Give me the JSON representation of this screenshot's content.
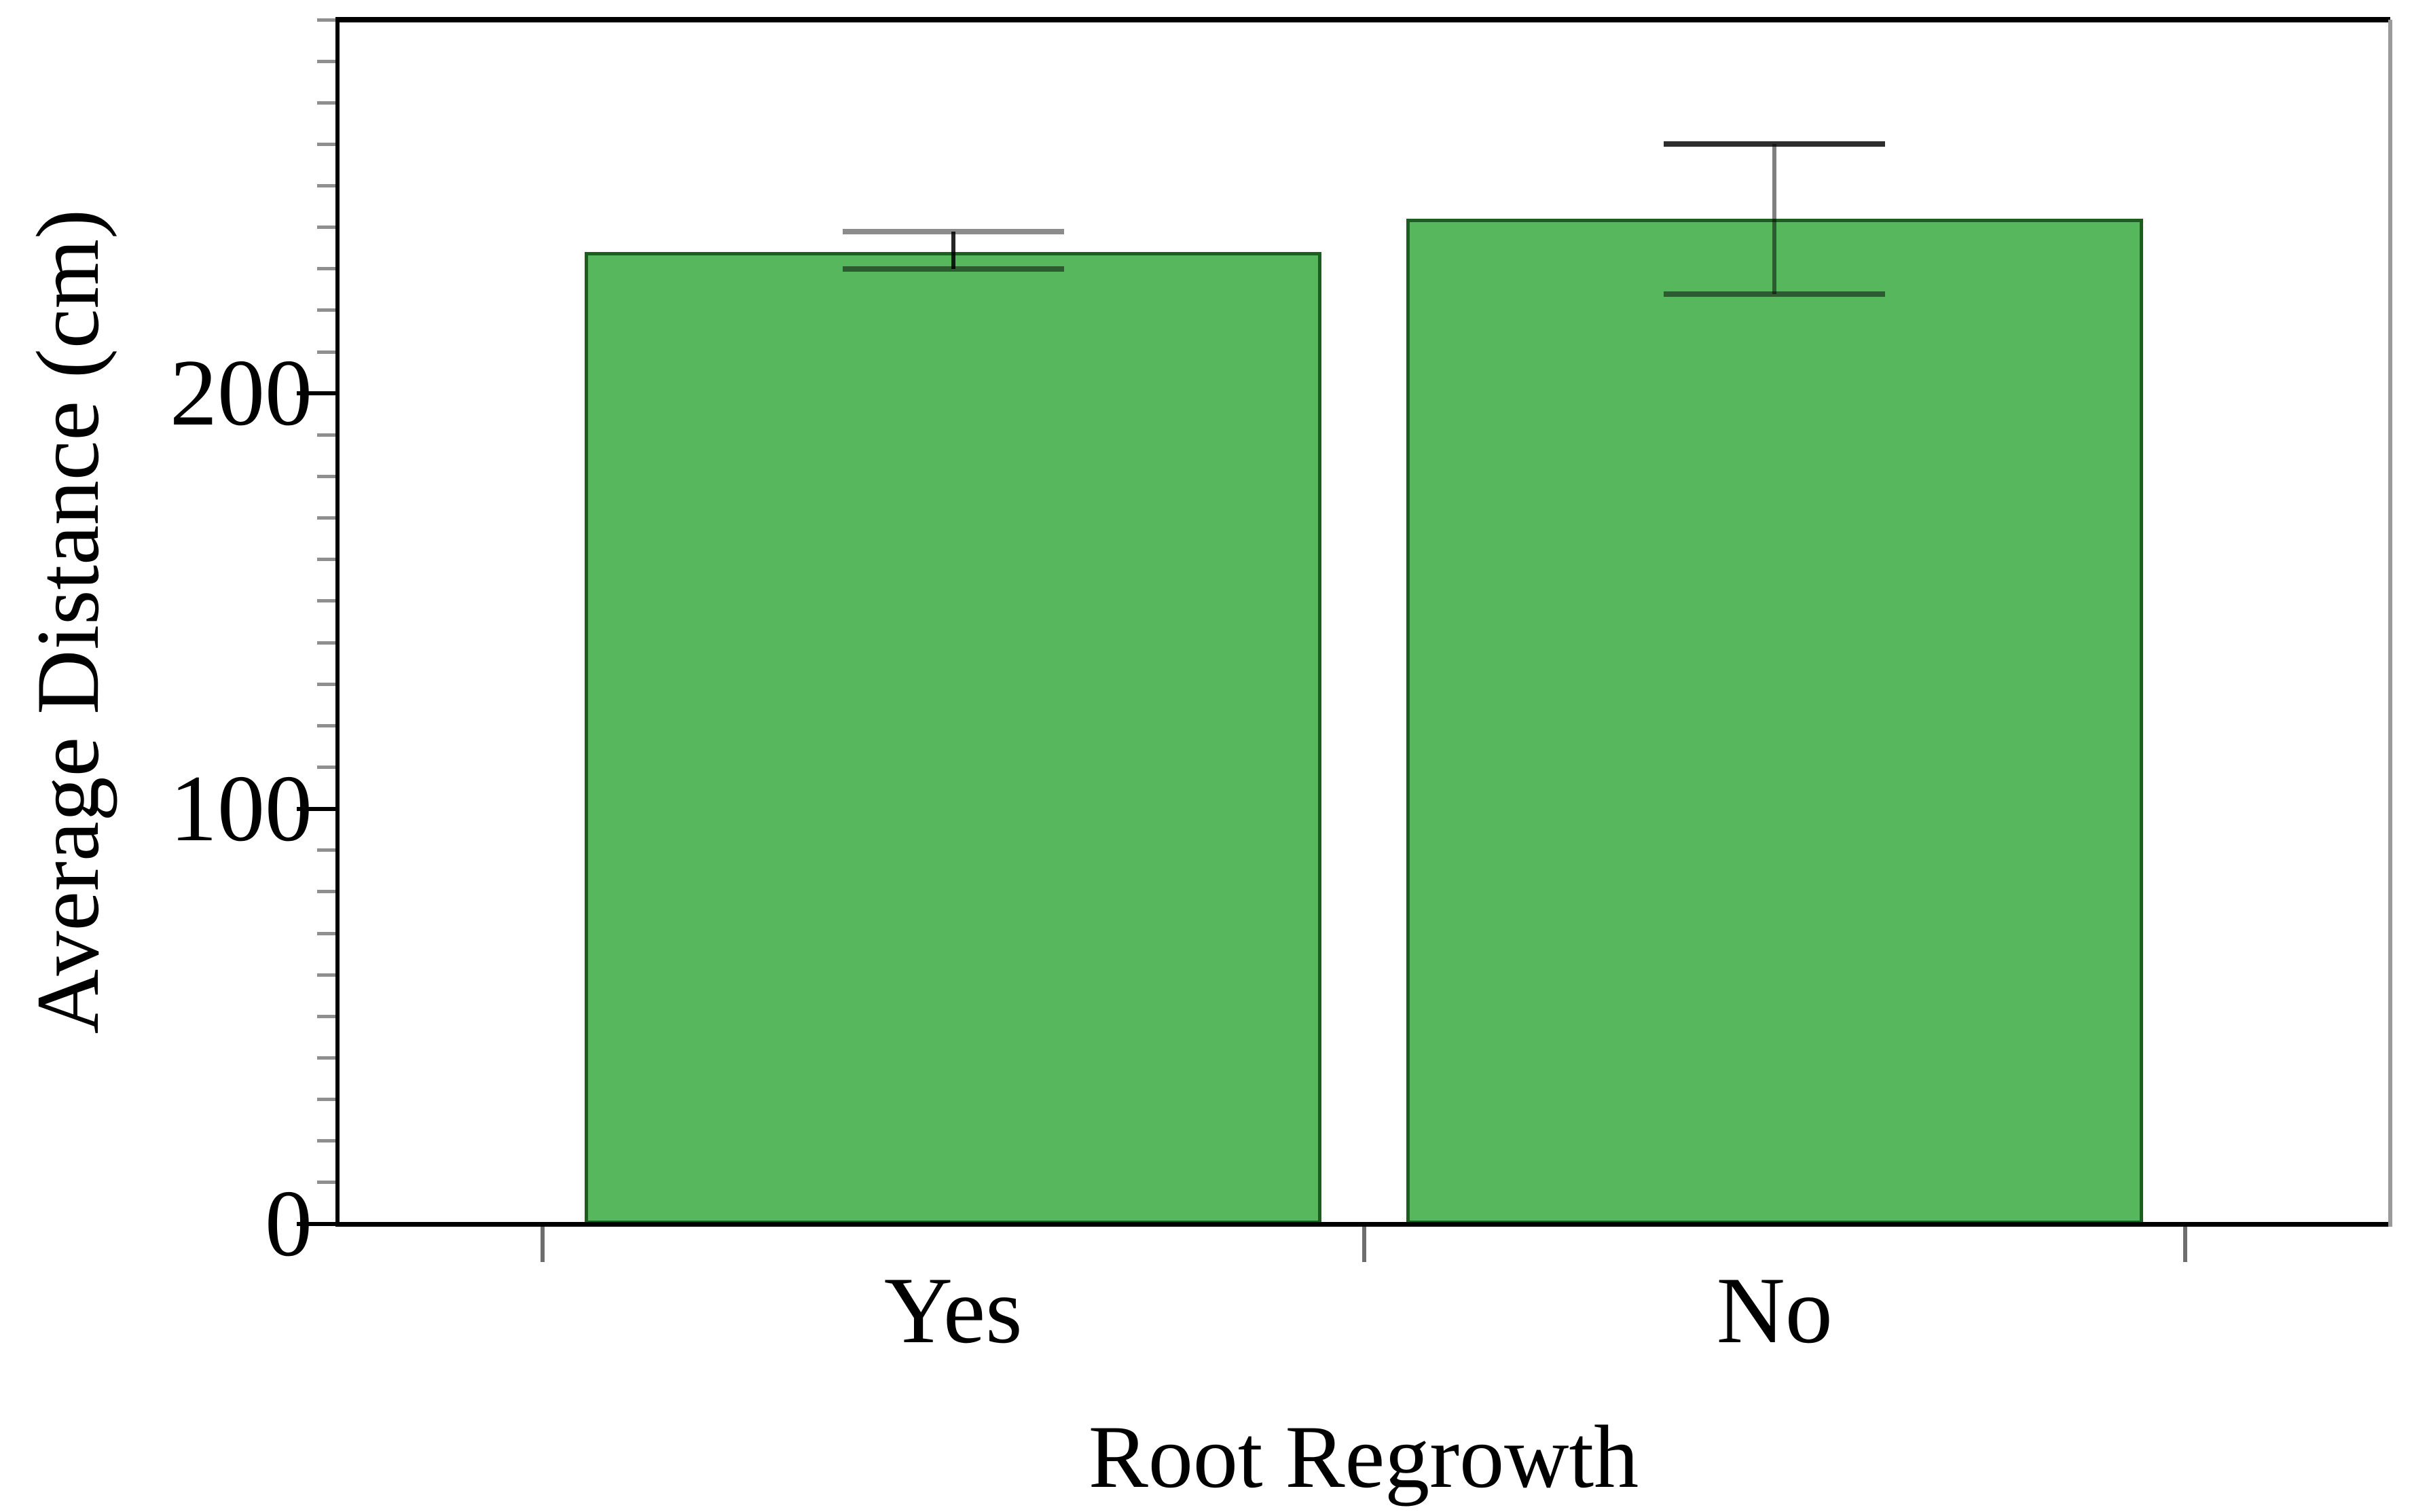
{
  "chart_data": {
    "type": "bar",
    "xlabel": "Root Regrowth",
    "ylabel": "Average Distance (cm)",
    "categories": [
      "Yes",
      "No"
    ],
    "values": [
      234,
      242
    ],
    "error_low": [
      230,
      224
    ],
    "error_high": [
      239,
      260
    ],
    "ylim": [
      0,
      290
    ],
    "ytick_values": [
      0,
      100,
      200
    ],
    "ytick_labels": [
      "0",
      "100",
      "200"
    ],
    "minor_tick_step": 10,
    "grid": false,
    "legend": "none"
  },
  "style": {
    "bar_fill": "#57b75c",
    "bar_edge": "#1b5e20",
    "frame_left": "#000000",
    "frame_top": "#000000",
    "frame_bottom": "#000000",
    "frame_right": "#9b9b9b",
    "major_tick_color": "#000000",
    "minor_tick_color": "#8f8f8f",
    "x_tick_color": "#6e6e6e",
    "text_color": "#000000",
    "error_bars": [
      {
        "stem": "rgba(0,0,0,0.85)",
        "top_cap": "rgba(0,0,0,0.45)",
        "bottom_cap": "rgba(0,0,0,0.50)"
      },
      {
        "stem": "rgba(0,0,0,0.50)",
        "top_cap": "rgba(0,0,0,0.82)",
        "bottom_cap": "rgba(0,0,0,0.50)"
      }
    ]
  }
}
